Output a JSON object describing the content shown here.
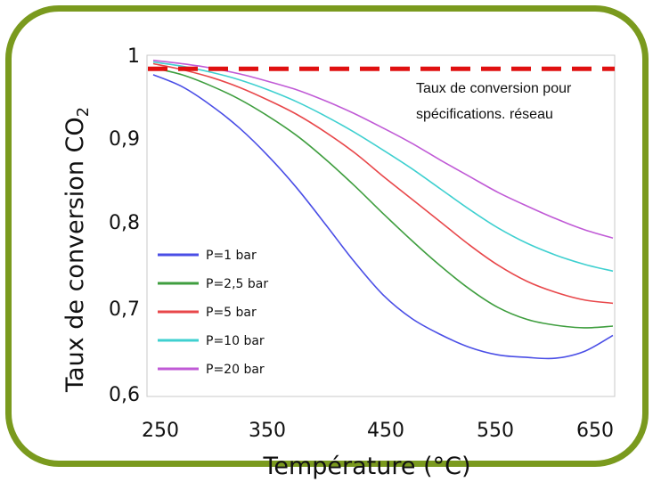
{
  "chart_data": {
    "type": "line",
    "xlabel": "Température (°C)",
    "ylabel_main": "Taux de conversion CO",
    "ylabel_sub": "2",
    "xlim": [
      250,
      650
    ],
    "ylim": [
      0.6,
      1.0
    ],
    "x_ticks": [
      "250",
      "350",
      "450",
      "550",
      "650"
    ],
    "y_ticks": [
      "1",
      "0,9",
      "0,8",
      "0,7",
      "0,6"
    ],
    "grid": false,
    "legend_position": "bottom-left",
    "x": [
      250,
      275,
      300,
      325,
      350,
      375,
      400,
      425,
      450,
      475,
      500,
      525,
      550,
      575,
      600,
      625,
      650
    ],
    "series": [
      {
        "name": "P=1 bar",
        "color": "#4a4ee6",
        "values": [
          0.977,
          0.963,
          0.941,
          0.914,
          0.881,
          0.843,
          0.8,
          0.756,
          0.717,
          0.689,
          0.67,
          0.655,
          0.646,
          0.643,
          0.642,
          0.65,
          0.669
        ]
      },
      {
        "name": "P=2,5 bar",
        "color": "#3f9e3f",
        "values": [
          0.985,
          0.977,
          0.964,
          0.948,
          0.928,
          0.905,
          0.877,
          0.846,
          0.813,
          0.781,
          0.751,
          0.724,
          0.702,
          0.688,
          0.681,
          0.678,
          0.68
        ]
      },
      {
        "name": "P=5 bar",
        "color": "#e8474a",
        "values": [
          0.99,
          0.983,
          0.974,
          0.962,
          0.947,
          0.93,
          0.909,
          0.885,
          0.857,
          0.83,
          0.803,
          0.776,
          0.752,
          0.733,
          0.72,
          0.711,
          0.707
        ]
      },
      {
        "name": "P=10 bar",
        "color": "#3fd0d0",
        "values": [
          0.992,
          0.987,
          0.98,
          0.971,
          0.959,
          0.945,
          0.928,
          0.909,
          0.888,
          0.866,
          0.842,
          0.818,
          0.796,
          0.778,
          0.764,
          0.753,
          0.745
        ]
      },
      {
        "name": "P=20 bar",
        "color": "#c05ad6",
        "values": [
          0.994,
          0.99,
          0.985,
          0.978,
          0.969,
          0.959,
          0.946,
          0.931,
          0.914,
          0.896,
          0.876,
          0.857,
          0.838,
          0.822,
          0.807,
          0.794,
          0.784
        ]
      }
    ],
    "reference_line": {
      "y": 0.984,
      "color": "#e01010",
      "style": "dashed"
    },
    "annotation": [
      "Taux de conversion pour",
      "spécifications. réseau"
    ]
  }
}
